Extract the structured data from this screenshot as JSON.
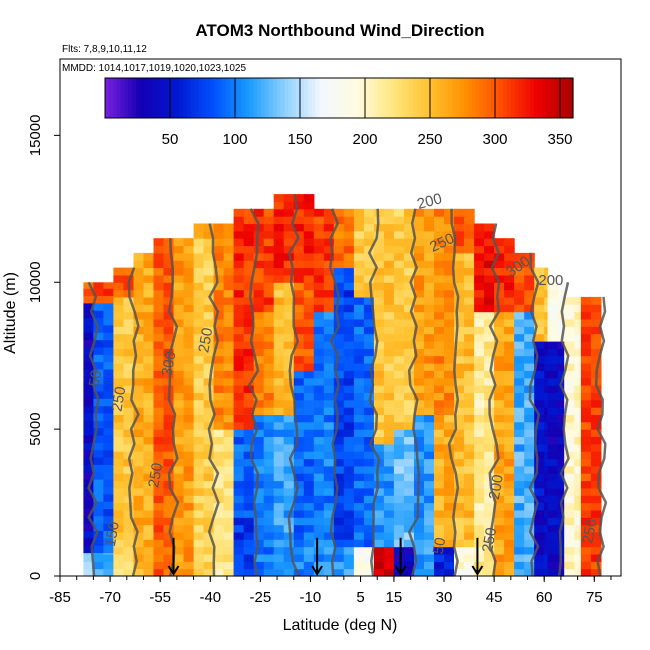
{
  "chart_data": {
    "type": "heatmap",
    "title": "ATOM3 Northbound Wind_Direction",
    "annotations": {
      "flights": "Flts: 7,8,9,10,11,12",
      "mmdd": "MMDD: 1014,1017,1019,1020,1023,1025"
    },
    "xlabel": "Latitude (deg N)",
    "ylabel": "Altitude (m)",
    "xlim": [
      -85,
      83
    ],
    "ylim": [
      0,
      17600
    ],
    "x_ticks": [
      -85,
      -70,
      -55,
      -40,
      -25,
      -10,
      5,
      15,
      30,
      45,
      60,
      75
    ],
    "x_tick_labels": [
      "-85",
      "-70",
      "-55",
      "-40",
      "-25",
      "-10",
      "5",
      "15",
      "30",
      "45",
      "60",
      "75"
    ],
    "y_ticks": [
      0,
      5000,
      10000,
      15000
    ],
    "y_tick_labels": [
      "0",
      "5000",
      "10000",
      "15000"
    ],
    "colorbar": {
      "range": [
        0,
        360
      ],
      "ticks": [
        50,
        100,
        150,
        200,
        250,
        300,
        350
      ],
      "tick_labels": [
        "50",
        "100",
        "150",
        "200",
        "250",
        "300",
        "350"
      ],
      "colors": [
        "#7a1fe0",
        "#1400b4",
        "#0018d0",
        "#0050ff",
        "#1a9bff",
        "#8fd0ff",
        "#f2f8ff",
        "#fffbe0",
        "#ffe680",
        "#ffc230",
        "#ff9000",
        "#ff4c00",
        "#ee0000",
        "#a80000"
      ]
    },
    "cell_size": {
      "lat": 3,
      "alt": 250
    },
    "columns": [
      {
        "lat": [
          -78,
          -75
        ],
        "top": 10000,
        "bands": [
          [
            0,
            800,
            150
          ],
          [
            800,
            9300,
            40
          ],
          [
            9300,
            10000,
            300
          ]
        ]
      },
      {
        "lat": [
          -75,
          -69
        ],
        "top": 10000,
        "bands": [
          [
            0,
            800,
            120
          ],
          [
            800,
            9300,
            85
          ],
          [
            9300,
            10000,
            310
          ]
        ]
      },
      {
        "lat": [
          -69,
          -63
        ],
        "top": 10500,
        "bands": [
          [
            0,
            1000,
            230
          ],
          [
            1000,
            9500,
            245
          ],
          [
            9500,
            10500,
            300
          ]
        ]
      },
      {
        "lat": [
          -63,
          -57
        ],
        "top": 11000,
        "bands": [
          [
            0,
            11000,
            260
          ]
        ]
      },
      {
        "lat": [
          -57,
          -51
        ],
        "top": 11500,
        "bands": [
          [
            0,
            11500,
            300
          ]
        ]
      },
      {
        "lat": [
          -51,
          -45
        ],
        "top": 11500,
        "bands": [
          [
            0,
            11500,
            270
          ]
        ]
      },
      {
        "lat": [
          -45,
          -39
        ],
        "top": 12000,
        "bands": [
          [
            0,
            11500,
            240
          ],
          [
            11500,
            12000,
            280
          ]
        ]
      },
      {
        "lat": [
          -39,
          -33
        ],
        "top": 12000,
        "bands": [
          [
            0,
            5000,
            220
          ],
          [
            5000,
            12000,
            280
          ]
        ]
      },
      {
        "lat": [
          -33,
          -27
        ],
        "top": 12500,
        "bands": [
          [
            0,
            2000,
            70
          ],
          [
            2000,
            5000,
            90
          ],
          [
            5000,
            12500,
            315
          ]
        ]
      },
      {
        "lat": [
          -27,
          -21
        ],
        "top": 12500,
        "bands": [
          [
            0,
            5500,
            100
          ],
          [
            5500,
            9000,
            280
          ],
          [
            9000,
            12500,
            310
          ]
        ]
      },
      {
        "lat": [
          -21,
          -15
        ],
        "top": 13000,
        "bands": [
          [
            0,
            1000,
            100
          ],
          [
            1000,
            5500,
            115
          ],
          [
            5500,
            10000,
            250
          ],
          [
            10000,
            13000,
            320
          ]
        ]
      },
      {
        "lat": [
          -15,
          -9
        ],
        "top": 13000,
        "bands": [
          [
            0,
            1000,
            105
          ],
          [
            1000,
            7000,
            90
          ],
          [
            7000,
            10000,
            300
          ],
          [
            10000,
            13000,
            320
          ]
        ]
      },
      {
        "lat": [
          -9,
          -3
        ],
        "top": 12500,
        "bands": [
          [
            0,
            1000,
            110
          ],
          [
            1000,
            9000,
            100
          ],
          [
            9000,
            12500,
            310
          ]
        ]
      },
      {
        "lat": [
          -3,
          3
        ],
        "top": 12500,
        "bands": [
          [
            0,
            1000,
            110
          ],
          [
            1000,
            10500,
            75
          ],
          [
            10500,
            12500,
            290
          ]
        ]
      },
      {
        "lat": [
          3,
          9
        ],
        "top": 12500,
        "bands": [
          [
            0,
            1000,
            180
          ],
          [
            1000,
            9500,
            90
          ],
          [
            9500,
            12500,
            240
          ]
        ]
      },
      {
        "lat": [
          9,
          15
        ],
        "top": 12500,
        "bands": [
          [
            0,
            1000,
            340
          ],
          [
            1000,
            4500,
            110
          ],
          [
            4500,
            9000,
            245
          ],
          [
            9000,
            12500,
            250
          ]
        ]
      },
      {
        "lat": [
          15,
          21
        ],
        "top": 12500,
        "bands": [
          [
            0,
            1000,
            40
          ],
          [
            1000,
            5000,
            130
          ],
          [
            5000,
            12500,
            240
          ]
        ]
      },
      {
        "lat": [
          21,
          27
        ],
        "top": 12500,
        "bands": [
          [
            0,
            5500,
            110
          ],
          [
            5500,
            12500,
            270
          ]
        ]
      },
      {
        "lat": [
          27,
          33
        ],
        "top": 12500,
        "bands": [
          [
            0,
            1000,
            60
          ],
          [
            1000,
            5500,
            260
          ],
          [
            5500,
            12500,
            280
          ]
        ]
      },
      {
        "lat": [
          33,
          39
        ],
        "top": 12500,
        "bands": [
          [
            0,
            1000,
            190
          ],
          [
            1000,
            11000,
            250
          ],
          [
            11000,
            12500,
            300
          ]
        ]
      },
      {
        "lat": [
          39,
          45
        ],
        "top": 12000,
        "bands": [
          [
            0,
            9000,
            215
          ],
          [
            9000,
            12000,
            330
          ]
        ]
      },
      {
        "lat": [
          45,
          51
        ],
        "top": 11500,
        "bands": [
          [
            0,
            9000,
            265
          ],
          [
            9000,
            11500,
            320
          ]
        ]
      },
      {
        "lat": [
          51,
          57
        ],
        "top": 11000,
        "bands": [
          [
            0,
            9000,
            120
          ],
          [
            9000,
            11000,
            300
          ]
        ]
      },
      {
        "lat": [
          57,
          61
        ],
        "top": 10500,
        "bands": [
          [
            0,
            8000,
            45
          ],
          [
            8000,
            10500,
            250
          ]
        ]
      },
      {
        "lat": [
          61,
          66
        ],
        "top": 10000,
        "bands": [
          [
            0,
            8000,
            40
          ],
          [
            8000,
            10000,
            190
          ]
        ]
      },
      {
        "lat": [
          66,
          71
        ],
        "top": 9500,
        "bands": [
          [
            0,
            9500,
            200
          ]
        ]
      },
      {
        "lat": [
          71,
          77
        ],
        "top": 9500,
        "bands": [
          [
            0,
            9500,
            310
          ]
        ]
      }
    ],
    "contour_labels": [
      {
        "text": "50",
        "lat": -73,
        "alt": 6700,
        "angle": -80
      },
      {
        "text": "250",
        "lat": -66,
        "alt": 6000,
        "angle": -80
      },
      {
        "text": "300",
        "lat": -51,
        "alt": 7200,
        "angle": -80
      },
      {
        "text": "250",
        "lat": -55,
        "alt": 3400,
        "angle": -80
      },
      {
        "text": "150",
        "lat": -68,
        "alt": 1400,
        "angle": -80
      },
      {
        "text": "250",
        "lat": -40,
        "alt": 8000,
        "angle": -80
      },
      {
        "text": "200",
        "lat": 26,
        "alt": 12600,
        "angle": -15
      },
      {
        "text": "250",
        "lat": 30,
        "alt": 11200,
        "angle": -25
      },
      {
        "text": "300",
        "lat": 53,
        "alt": 10400,
        "angle": -35
      },
      {
        "text": "200",
        "lat": 62,
        "alt": 9900,
        "angle": 0
      },
      {
        "text": "200",
        "lat": 47,
        "alt": 3000,
        "angle": -80
      },
      {
        "text": "250",
        "lat": 45,
        "alt": 1200,
        "angle": -80
      },
      {
        "text": "50",
        "lat": 30,
        "alt": 1000,
        "angle": -80
      },
      {
        "text": "250",
        "lat": 75,
        "alt": 1500,
        "angle": -80
      }
    ],
    "flight_markers": [
      -51,
      -8,
      17,
      40
    ]
  }
}
